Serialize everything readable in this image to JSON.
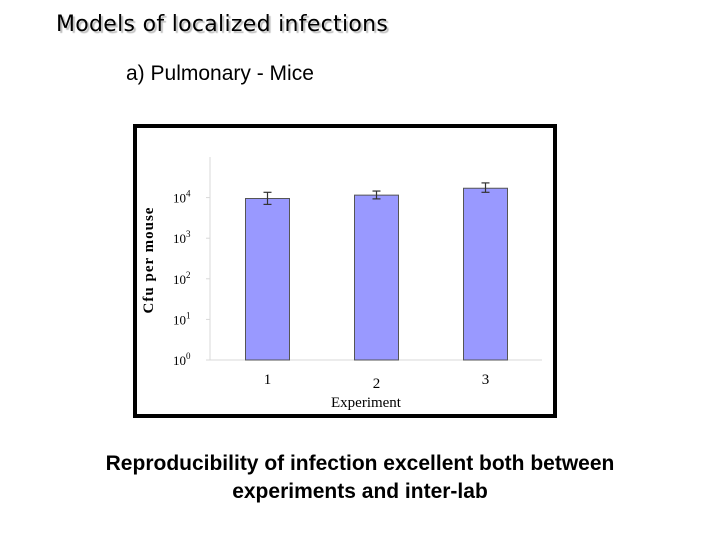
{
  "slide": {
    "title": "Models of localized infections",
    "subtitle": "a) Pulmonary - Mice",
    "caption_line1": "Reproducibility of infection excellent both between",
    "caption_line2": "experiments and inter-lab"
  },
  "chart_data": {
    "type": "bar",
    "categories": [
      "1",
      "2",
      "3"
    ],
    "values": [
      9500,
      11500,
      17000
    ],
    "error_low": [
      6800,
      9300,
      13500
    ],
    "error_high": [
      13500,
      14500,
      23000
    ],
    "xlabel": "Experiment",
    "ylabel": "Cfu per mouse",
    "y_scale": "log",
    "ylim": [
      1,
      100000
    ],
    "yticks": [
      {
        "base": "10",
        "exp": "0",
        "value": 1
      },
      {
        "base": "10",
        "exp": "1",
        "value": 10
      },
      {
        "base": "10",
        "exp": "2",
        "value": 100
      },
      {
        "base": "10",
        "exp": "3",
        "value": 1000
      },
      {
        "base": "10",
        "exp": "4",
        "value": 10000
      }
    ],
    "bar_color": "#9999ff",
    "grid": false,
    "legend": "none"
  }
}
